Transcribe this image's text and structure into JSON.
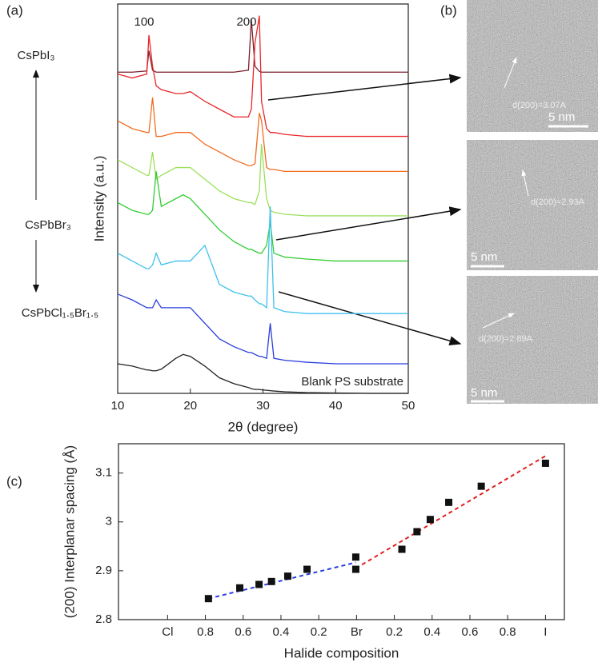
{
  "panel_labels": [
    "(a)",
    "(b)",
    "(c)"
  ],
  "compositions": [
    "CsPbI₃",
    "CsPbBr₃",
    "CsPbCl₁.₅Br₁.₅"
  ],
  "tem_images": [
    {
      "label": "d(200)=3.07A",
      "scale": "5 nm"
    },
    {
      "label": "d(200)=2.93A",
      "scale": "5 nm"
    },
    {
      "label": "d(200)=2.89A",
      "scale": "5 nm"
    }
  ],
  "chart_data": [
    {
      "type": "line",
      "xlabel": "2θ (degree)",
      "ylabel": "Intensity (a.u.)",
      "xlim": [
        10,
        50
      ],
      "xticks": [
        10,
        20,
        30,
        40,
        50
      ],
      "ylim": [
        0,
        100
      ],
      "peak_labels": [
        {
          "value": 14.3,
          "label": "100"
        },
        {
          "value": 28.4,
          "label": "200"
        }
      ],
      "annotation": "Blank PS substrate",
      "x": [
        10,
        12,
        14,
        14.3,
        14.8,
        15.3,
        16,
        18,
        19,
        20,
        22,
        24,
        26,
        28,
        28.4,
        28.9,
        29.5,
        29.8,
        30.5,
        31,
        31.5,
        33,
        36,
        40,
        45,
        50
      ],
      "series": [
        {
          "color": "#7b1f2a",
          "values": [
            82.5,
            82.5,
            82.8,
            88,
            83,
            82.5,
            82.5,
            82.5,
            82.5,
            82.5,
            82.5,
            82.5,
            82.5,
            83,
            96,
            84,
            82.7,
            82.5,
            82.5,
            82.5,
            82.5,
            82.5,
            82.5,
            82.5,
            82.5,
            82.5
          ]
        },
        {
          "color": "#e8262b",
          "values": [
            82,
            81,
            82,
            92,
            84,
            79,
            78,
            77,
            77,
            77.5,
            75,
            73,
            71,
            71,
            73,
            90,
            97,
            75,
            68,
            67,
            67,
            66.5,
            66,
            66,
            66,
            66
          ]
        },
        {
          "color": "#f26c1f",
          "values": [
            70,
            68,
            67,
            67,
            76,
            66,
            66,
            67,
            67,
            67,
            64,
            62,
            60,
            58.5,
            58.5,
            59,
            72,
            70,
            58,
            57.5,
            57.5,
            57,
            57,
            57,
            57,
            57
          ]
        },
        {
          "color": "#9be05a",
          "values": [
            60,
            58,
            56,
            56,
            62,
            55,
            56,
            58,
            58,
            58,
            55,
            52,
            50,
            49,
            49,
            48.5,
            52,
            64,
            50,
            47,
            46.5,
            46,
            45.6,
            45.6,
            45.6,
            45.6
          ]
        },
        {
          "color": "#33cc33",
          "values": [
            49,
            47,
            46,
            46,
            47,
            57,
            48,
            50,
            51,
            50,
            46,
            42,
            39,
            37,
            37,
            36.5,
            36,
            36,
            38,
            44,
            36,
            35,
            34.5,
            34,
            34,
            34
          ]
        },
        {
          "color": "#3ec0ec",
          "values": [
            36,
            34,
            32,
            32,
            33,
            36,
            33,
            34,
            34,
            34,
            38,
            28,
            26,
            25,
            25,
            24,
            23,
            23,
            22,
            48,
            22,
            21,
            20.5,
            20.5,
            20.5,
            20.5
          ]
        },
        {
          "color": "#2a3ee0",
          "values": [
            25.5,
            24,
            22,
            22,
            22,
            24,
            22,
            22,
            22,
            22,
            18,
            14,
            12,
            10.5,
            10.5,
            10,
            9.5,
            9.5,
            9,
            18,
            9,
            8.5,
            8,
            7.6,
            7.6,
            7.6
          ]
        },
        {
          "color": "#222222",
          "values": [
            7.6,
            7,
            6,
            6,
            5.8,
            5.8,
            6.2,
            9,
            10,
            9.5,
            7,
            4,
            2.5,
            1.5,
            1.2,
            1,
            1,
            0.9,
            0.8,
            0.7,
            0.6,
            0.4,
            0.2,
            0.1,
            0,
            0
          ]
        }
      ]
    },
    {
      "type": "scatter",
      "xlabel": "Halide composition",
      "ylabel": "(200) Interplanar spacing (Å)",
      "xlim": [
        -1.3,
        10.5
      ],
      "xticks": [
        {
          "value": 0,
          "label": "Cl"
        },
        {
          "value": 1,
          "label": "0.8"
        },
        {
          "value": 2,
          "label": "0.6"
        },
        {
          "value": 3,
          "label": "0.4"
        },
        {
          "value": 4,
          "label": "0.2"
        },
        {
          "value": 5,
          "label": "Br"
        },
        {
          "value": 6,
          "label": "0.2"
        },
        {
          "value": 7,
          "label": "0.4"
        },
        {
          "value": 8,
          "label": "0.6"
        },
        {
          "value": 9,
          "label": "0.8"
        },
        {
          "value": 10,
          "label": "I"
        }
      ],
      "ylim": [
        2.8,
        3.16
      ],
      "yticks": [
        2.8,
        2.9,
        3.0,
        3.1
      ],
      "color": "#111111",
      "x": [
        1.08,
        1.91,
        2.42,
        2.75,
        3.18,
        3.69,
        4.98,
        4.98,
        6.2,
        6.6,
        6.95,
        7.44,
        8.3,
        10
      ],
      "y": [
        2.843,
        2.865,
        2.872,
        2.878,
        2.889,
        2.903,
        2.928,
        2.903,
        2.944,
        2.98,
        3.005,
        3.04,
        3.073,
        3.12
      ],
      "fits": [
        {
          "color": "#2a3ee0",
          "x": [
            1.08,
            4.98
          ],
          "y": [
            2.843,
            2.917
          ]
        },
        {
          "color": "#e02020",
          "x": [
            4.98,
            10
          ],
          "y": [
            2.905,
            3.135
          ]
        }
      ]
    }
  ]
}
